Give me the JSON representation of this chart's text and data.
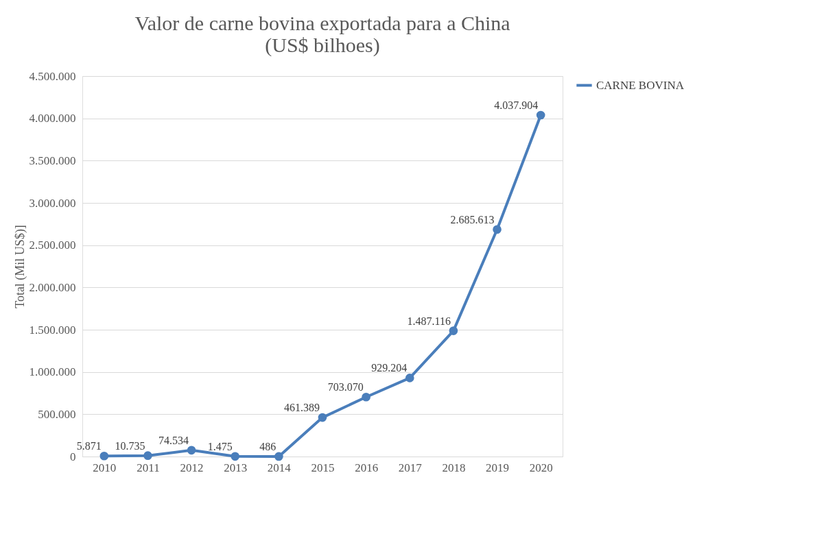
{
  "chart_data": {
    "type": "line",
    "title": "Valor de carne bovina exportada para a China (US$ bilhoes)",
    "ylabel": "Total (Mil US$)]",
    "categories": [
      "2010",
      "2011",
      "2012",
      "2013",
      "2014",
      "2015",
      "2016",
      "2017",
      "2018",
      "2019",
      "2020"
    ],
    "series": [
      {
        "name": "CARNE BOVINA",
        "color": "#4a7ebb",
        "values": [
          5871,
          10735,
          74534,
          1475,
          486,
          461389,
          703070,
          929204,
          1487116,
          2685613,
          4037904
        ],
        "value_labels": [
          "5.871",
          "10.735",
          "74.534",
          "1.475",
          "486",
          "461.389",
          "703.070",
          "929.204",
          "1.487.116",
          "2.685.613",
          "4.037.904"
        ]
      }
    ],
    "ylim": [
      0,
      4500000
    ],
    "yticks": [
      {
        "value": 0,
        "label": "0"
      },
      {
        "value": 500000,
        "label": "500.000"
      },
      {
        "value": 1000000,
        "label": "1.000.000"
      },
      {
        "value": 1500000,
        "label": "1.500.000"
      },
      {
        "value": 2000000,
        "label": "2.000.000"
      },
      {
        "value": 2500000,
        "label": "2.500.000"
      },
      {
        "value": 3000000,
        "label": "3.000.000"
      },
      {
        "value": 3500000,
        "label": "3.500.000"
      },
      {
        "value": 4000000,
        "label": "4.000.000"
      },
      {
        "value": 4500000,
        "label": "4.500.000"
      }
    ],
    "grid": "y",
    "legend": "right",
    "marker": "circle",
    "line_style": "solid"
  }
}
